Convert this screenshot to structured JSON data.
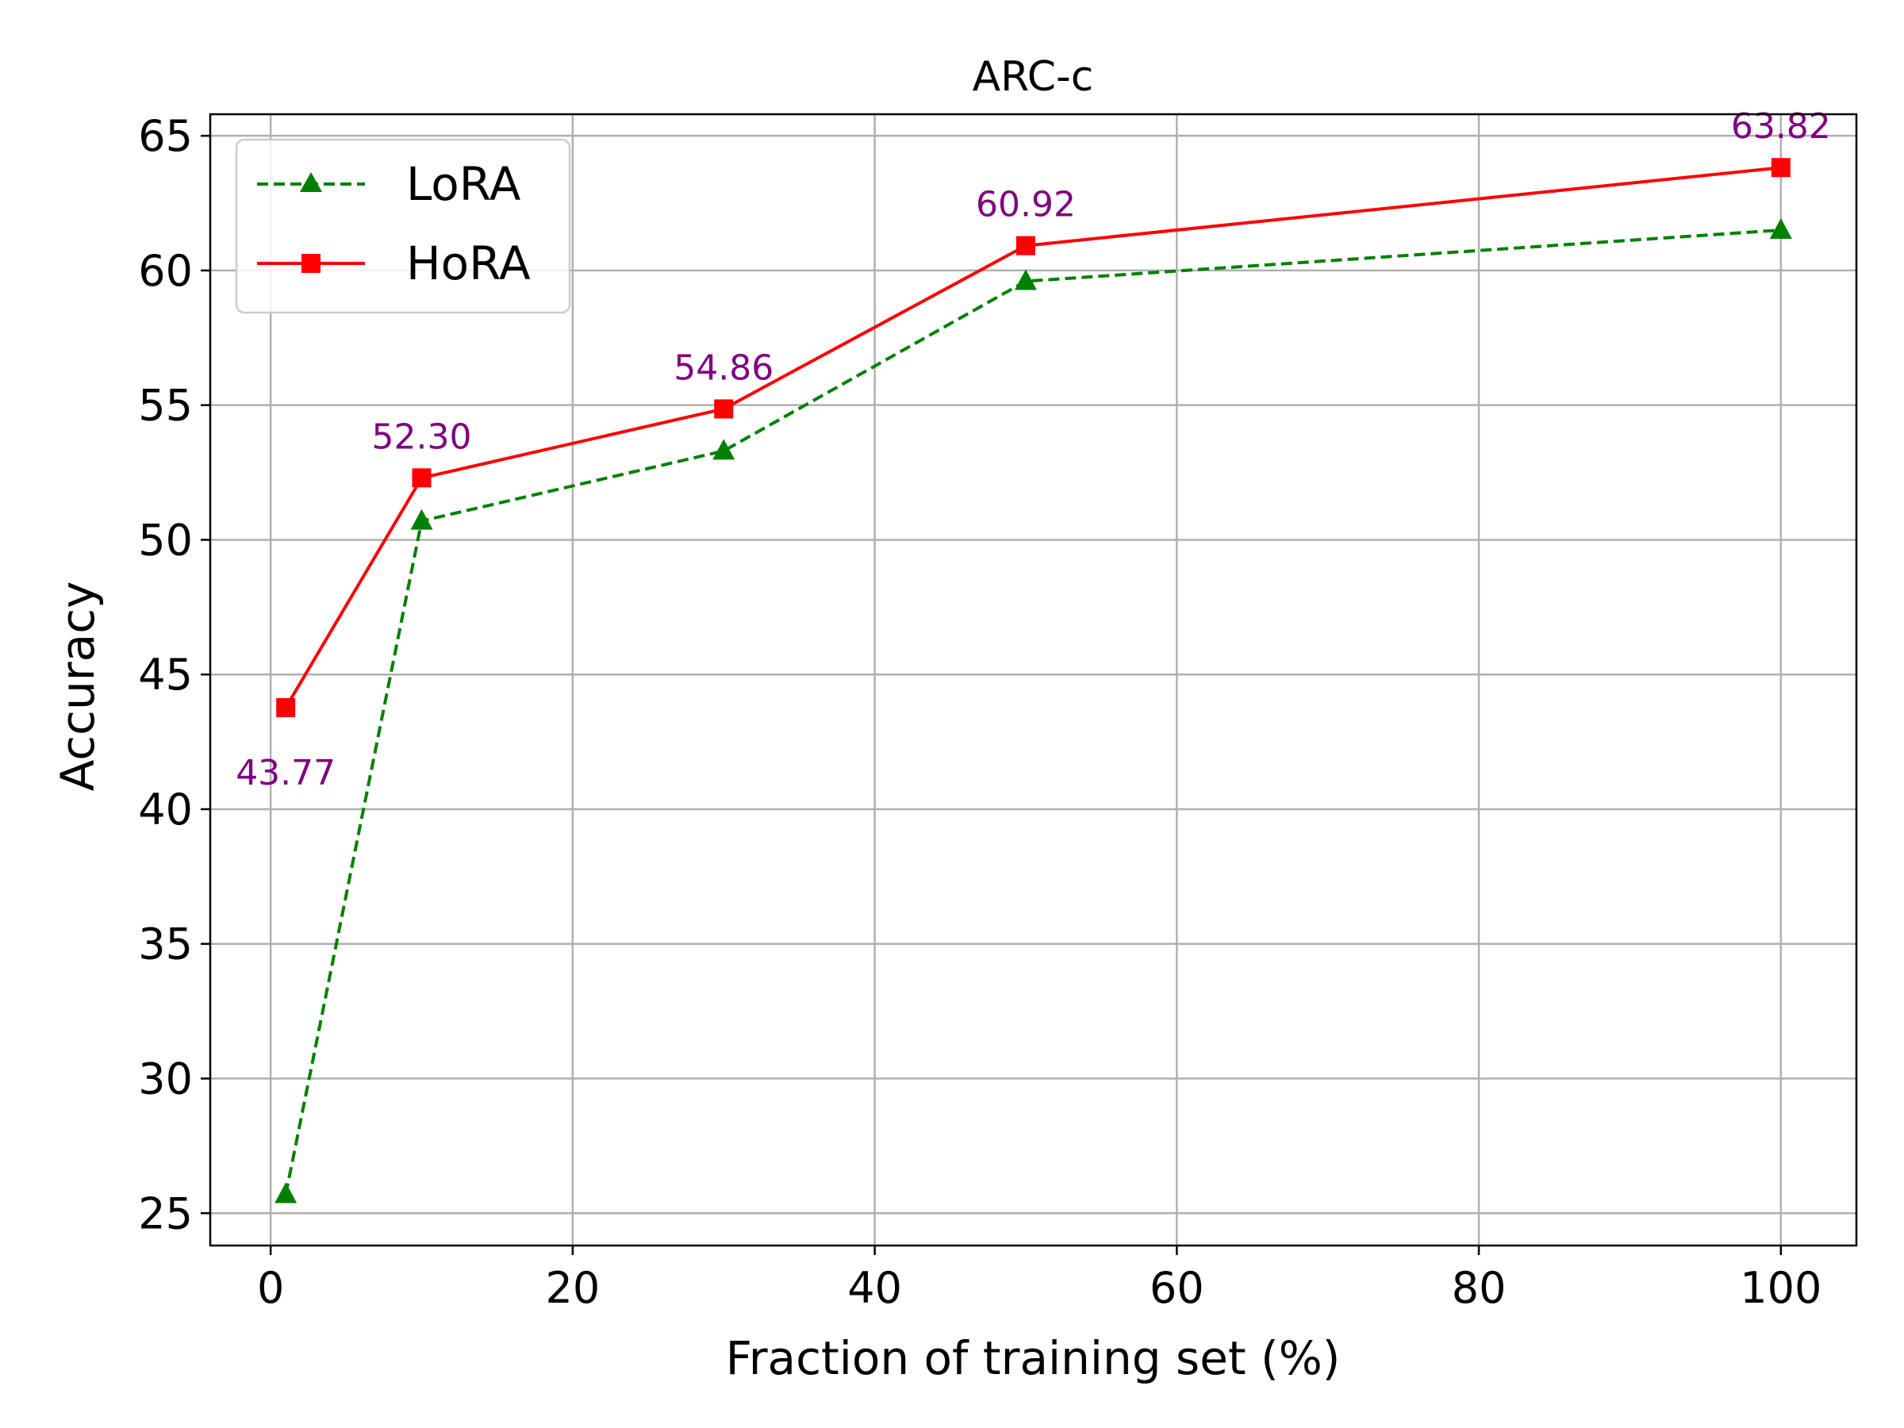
{
  "chart_data": {
    "type": "line",
    "title": "ARC-c",
    "xlabel": "Fraction of training set (%)",
    "ylabel": "Accuracy",
    "xlim": [
      -4,
      105
    ],
    "ylim": [
      23.8,
      65.8
    ],
    "xticks": [
      0,
      20,
      40,
      60,
      80,
      100
    ],
    "yticks": [
      25,
      30,
      35,
      40,
      45,
      50,
      55,
      60,
      65
    ],
    "grid": true,
    "legend_position": "top-left",
    "x": [
      1,
      10,
      30,
      50,
      100
    ],
    "series": [
      {
        "name": "LoRA",
        "color": "#008000",
        "linestyle": "dashed",
        "marker": "triangle",
        "values": [
          25.7,
          50.7,
          53.3,
          59.6,
          61.5
        ]
      },
      {
        "name": "HoRA",
        "color": "#ff0000",
        "linestyle": "solid",
        "marker": "square",
        "values": [
          43.77,
          52.3,
          54.86,
          60.92,
          63.82
        ]
      }
    ],
    "annotations": [
      "43.77",
      "52.30",
      "54.86",
      "60.92",
      "63.82"
    ],
    "annotation_color": "#800080"
  }
}
